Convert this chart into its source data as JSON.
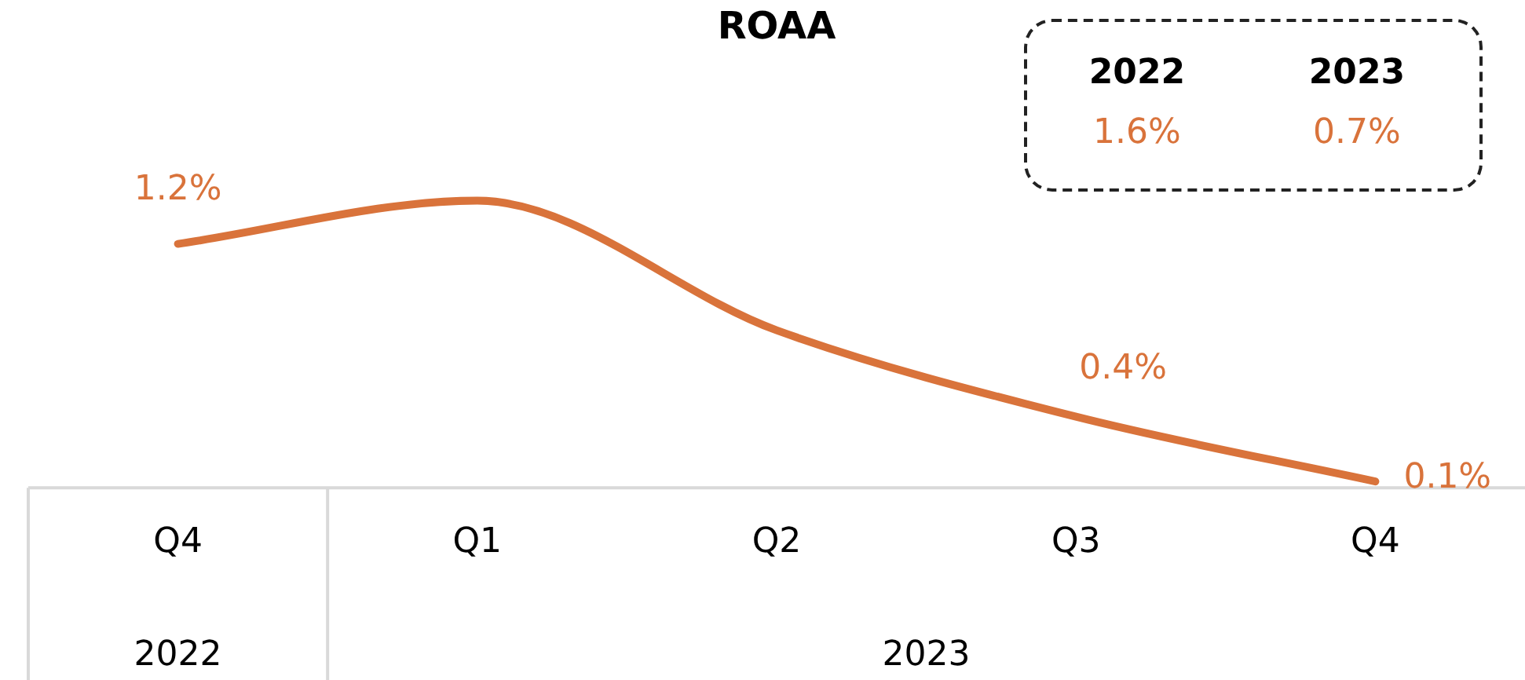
{
  "chart_data": {
    "type": "line",
    "title": "ROAA",
    "categories": [
      "Q4",
      "Q1",
      "Q2",
      "Q3",
      "Q4"
    ],
    "series": [
      {
        "color": "#d9733b",
        "values": [
          1.2,
          1.4,
          0.8,
          0.4,
          0.1
        ],
        "value_labels": [
          "1.2%",
          null,
          null,
          "0.4%",
          "0.1%"
        ]
      }
    ],
    "annotations": [
      "2022",
      "1.6%",
      "2023",
      "0.7%",
      "2022",
      "2023"
    ],
    "grid": false,
    "legend": false,
    "marker": "none",
    "line_style": "solid",
    "tick_labels": "x"
  }
}
